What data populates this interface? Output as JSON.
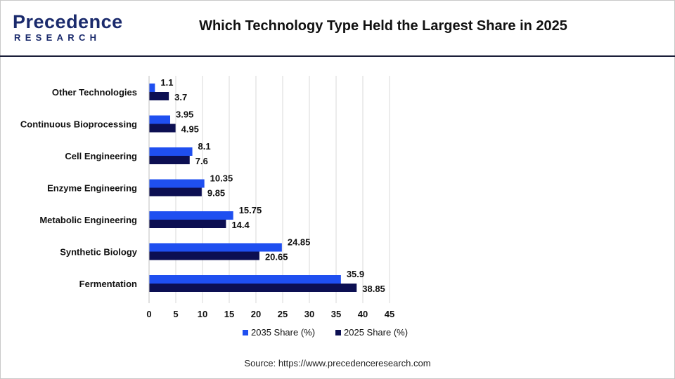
{
  "header": {
    "logo_top": "Precedence",
    "logo_bottom": "RESEARCH",
    "title": "Which Technology Type Held the Largest Share in 2025"
  },
  "source": "Source: https://www.precedenceresearch.com",
  "colors": {
    "series_2035": "#1f4ff0",
    "series_2025": "#0c0f52",
    "grid": "#d9d9d9",
    "header_rule": "#1b1f3a"
  },
  "chart_data": {
    "type": "bar",
    "orientation": "horizontal",
    "categories": [
      "Other Technologies",
      "Continuous Bioprocessing",
      "Cell Engineering",
      "Enzyme Engineering",
      "Metabolic Engineering",
      "Synthetic Biology",
      "Fermentation"
    ],
    "series": [
      {
        "name": "2035 Share (%)",
        "values": [
          1.1,
          3.95,
          8.1,
          10.35,
          15.75,
          24.85,
          35.9
        ]
      },
      {
        "name": "2025 Share (%)",
        "values": [
          3.7,
          4.95,
          7.6,
          9.85,
          14.4,
          20.65,
          38.85
        ]
      }
    ],
    "x_ticks": [
      "0",
      "5",
      "10",
      "15",
      "20",
      "25",
      "30",
      "35",
      "40",
      "45"
    ],
    "xlim": [
      0,
      45
    ],
    "grid": true,
    "legend_position": "bottom",
    "data_labels": true
  }
}
